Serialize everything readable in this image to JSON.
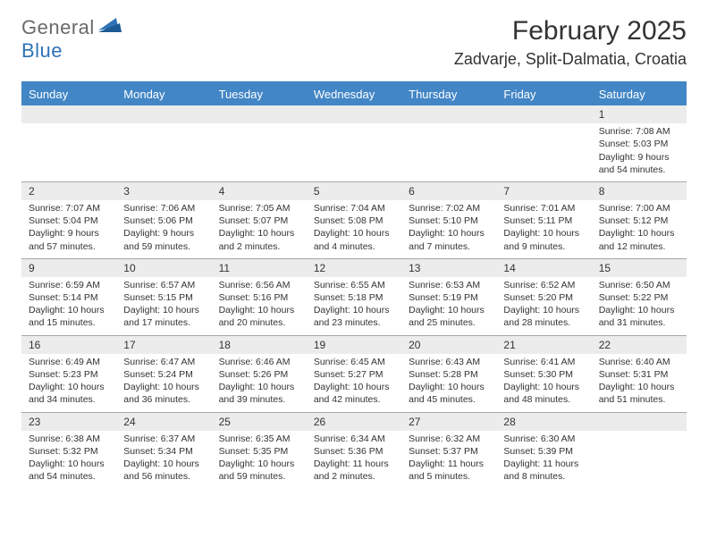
{
  "logo": {
    "part1": "General",
    "part2": "Blue"
  },
  "title": "February 2025",
  "location": "Zadvarje, Split-Dalmatia, Croatia",
  "colors": {
    "header_bg": "#4286c6",
    "header_text": "#ffffff",
    "daynum_bg": "#ececec",
    "text": "#333333",
    "rule": "#a6a6a6",
    "logo_gray": "#6a6a6a",
    "logo_blue": "#2f73b6"
  },
  "weekdays": [
    "Sunday",
    "Monday",
    "Tuesday",
    "Wednesday",
    "Thursday",
    "Friday",
    "Saturday"
  ],
  "weeks": [
    [
      null,
      null,
      null,
      null,
      null,
      null,
      {
        "n": "1",
        "sr": "Sunrise: 7:08 AM",
        "ss": "Sunset: 5:03 PM",
        "d1": "Daylight: 9 hours",
        "d2": "and 54 minutes."
      }
    ],
    [
      {
        "n": "2",
        "sr": "Sunrise: 7:07 AM",
        "ss": "Sunset: 5:04 PM",
        "d1": "Daylight: 9 hours",
        "d2": "and 57 minutes."
      },
      {
        "n": "3",
        "sr": "Sunrise: 7:06 AM",
        "ss": "Sunset: 5:06 PM",
        "d1": "Daylight: 9 hours",
        "d2": "and 59 minutes."
      },
      {
        "n": "4",
        "sr": "Sunrise: 7:05 AM",
        "ss": "Sunset: 5:07 PM",
        "d1": "Daylight: 10 hours",
        "d2": "and 2 minutes."
      },
      {
        "n": "5",
        "sr": "Sunrise: 7:04 AM",
        "ss": "Sunset: 5:08 PM",
        "d1": "Daylight: 10 hours",
        "d2": "and 4 minutes."
      },
      {
        "n": "6",
        "sr": "Sunrise: 7:02 AM",
        "ss": "Sunset: 5:10 PM",
        "d1": "Daylight: 10 hours",
        "d2": "and 7 minutes."
      },
      {
        "n": "7",
        "sr": "Sunrise: 7:01 AM",
        "ss": "Sunset: 5:11 PM",
        "d1": "Daylight: 10 hours",
        "d2": "and 9 minutes."
      },
      {
        "n": "8",
        "sr": "Sunrise: 7:00 AM",
        "ss": "Sunset: 5:12 PM",
        "d1": "Daylight: 10 hours",
        "d2": "and 12 minutes."
      }
    ],
    [
      {
        "n": "9",
        "sr": "Sunrise: 6:59 AM",
        "ss": "Sunset: 5:14 PM",
        "d1": "Daylight: 10 hours",
        "d2": "and 15 minutes."
      },
      {
        "n": "10",
        "sr": "Sunrise: 6:57 AM",
        "ss": "Sunset: 5:15 PM",
        "d1": "Daylight: 10 hours",
        "d2": "and 17 minutes."
      },
      {
        "n": "11",
        "sr": "Sunrise: 6:56 AM",
        "ss": "Sunset: 5:16 PM",
        "d1": "Daylight: 10 hours",
        "d2": "and 20 minutes."
      },
      {
        "n": "12",
        "sr": "Sunrise: 6:55 AM",
        "ss": "Sunset: 5:18 PM",
        "d1": "Daylight: 10 hours",
        "d2": "and 23 minutes."
      },
      {
        "n": "13",
        "sr": "Sunrise: 6:53 AM",
        "ss": "Sunset: 5:19 PM",
        "d1": "Daylight: 10 hours",
        "d2": "and 25 minutes."
      },
      {
        "n": "14",
        "sr": "Sunrise: 6:52 AM",
        "ss": "Sunset: 5:20 PM",
        "d1": "Daylight: 10 hours",
        "d2": "and 28 minutes."
      },
      {
        "n": "15",
        "sr": "Sunrise: 6:50 AM",
        "ss": "Sunset: 5:22 PM",
        "d1": "Daylight: 10 hours",
        "d2": "and 31 minutes."
      }
    ],
    [
      {
        "n": "16",
        "sr": "Sunrise: 6:49 AM",
        "ss": "Sunset: 5:23 PM",
        "d1": "Daylight: 10 hours",
        "d2": "and 34 minutes."
      },
      {
        "n": "17",
        "sr": "Sunrise: 6:47 AM",
        "ss": "Sunset: 5:24 PM",
        "d1": "Daylight: 10 hours",
        "d2": "and 36 minutes."
      },
      {
        "n": "18",
        "sr": "Sunrise: 6:46 AM",
        "ss": "Sunset: 5:26 PM",
        "d1": "Daylight: 10 hours",
        "d2": "and 39 minutes."
      },
      {
        "n": "19",
        "sr": "Sunrise: 6:45 AM",
        "ss": "Sunset: 5:27 PM",
        "d1": "Daylight: 10 hours",
        "d2": "and 42 minutes."
      },
      {
        "n": "20",
        "sr": "Sunrise: 6:43 AM",
        "ss": "Sunset: 5:28 PM",
        "d1": "Daylight: 10 hours",
        "d2": "and 45 minutes."
      },
      {
        "n": "21",
        "sr": "Sunrise: 6:41 AM",
        "ss": "Sunset: 5:30 PM",
        "d1": "Daylight: 10 hours",
        "d2": "and 48 minutes."
      },
      {
        "n": "22",
        "sr": "Sunrise: 6:40 AM",
        "ss": "Sunset: 5:31 PM",
        "d1": "Daylight: 10 hours",
        "d2": "and 51 minutes."
      }
    ],
    [
      {
        "n": "23",
        "sr": "Sunrise: 6:38 AM",
        "ss": "Sunset: 5:32 PM",
        "d1": "Daylight: 10 hours",
        "d2": "and 54 minutes."
      },
      {
        "n": "24",
        "sr": "Sunrise: 6:37 AM",
        "ss": "Sunset: 5:34 PM",
        "d1": "Daylight: 10 hours",
        "d2": "and 56 minutes."
      },
      {
        "n": "25",
        "sr": "Sunrise: 6:35 AM",
        "ss": "Sunset: 5:35 PM",
        "d1": "Daylight: 10 hours",
        "d2": "and 59 minutes."
      },
      {
        "n": "26",
        "sr": "Sunrise: 6:34 AM",
        "ss": "Sunset: 5:36 PM",
        "d1": "Daylight: 11 hours",
        "d2": "and 2 minutes."
      },
      {
        "n": "27",
        "sr": "Sunrise: 6:32 AM",
        "ss": "Sunset: 5:37 PM",
        "d1": "Daylight: 11 hours",
        "d2": "and 5 minutes."
      },
      {
        "n": "28",
        "sr": "Sunrise: 6:30 AM",
        "ss": "Sunset: 5:39 PM",
        "d1": "Daylight: 11 hours",
        "d2": "and 8 minutes."
      },
      null
    ]
  ]
}
